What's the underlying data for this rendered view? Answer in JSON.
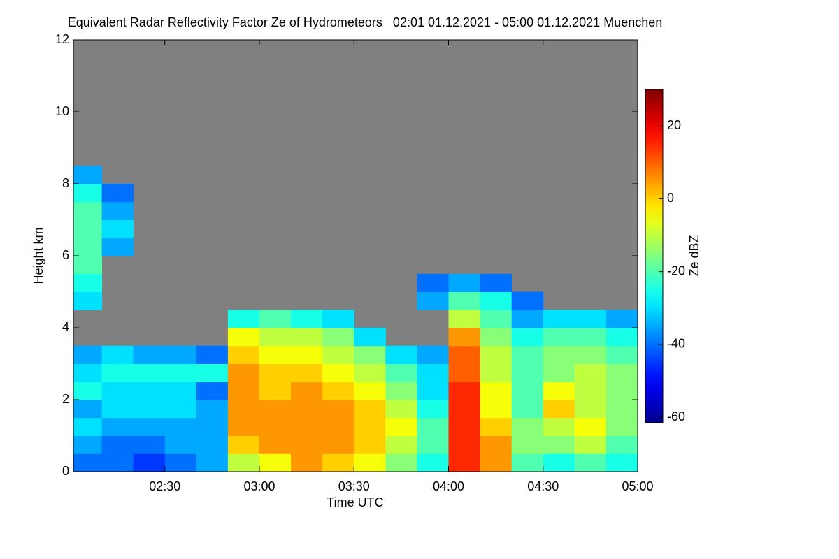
{
  "chart_data": {
    "type": "heatmap",
    "title": "Equivalent Radar Reflectivity Factor Ze of Hydrometeors   02:01 01.12.2021 - 05:00 01.12.2021 Muenchen",
    "xlabel": "Time UTC",
    "ylabel": "Height km",
    "colorbar_label": "Ze dBZ",
    "colormap": "jet",
    "nan_color": "#808080",
    "xlim": [
      121,
      300
    ],
    "ylim": [
      0,
      12
    ],
    "zlim": [
      -61.5,
      30
    ],
    "xticks": [
      {
        "value": 150,
        "label": "02:30"
      },
      {
        "value": 180,
        "label": "03:00"
      },
      {
        "value": 210,
        "label": "03:30"
      },
      {
        "value": 240,
        "label": "04:00"
      },
      {
        "value": 270,
        "label": "04:30"
      },
      {
        "value": 300,
        "label": "05:00"
      }
    ],
    "yticks": [
      0,
      2,
      4,
      6,
      8,
      10,
      12
    ],
    "zticks": [
      -60,
      -40,
      -20,
      0,
      20
    ],
    "xbins": [
      121,
      130,
      140,
      150,
      160,
      170,
      180,
      190,
      200,
      210,
      220,
      230,
      240,
      250,
      260,
      270,
      280,
      290,
      300
    ],
    "ybins": [
      0,
      0.5,
      1,
      1.5,
      2,
      2.5,
      3,
      3.5,
      4,
      4.5,
      5,
      5.5,
      6,
      6.5,
      7,
      7.5,
      8,
      8.5,
      9
    ],
    "z": [
      [
        -40,
        -40,
        -45,
        -40,
        -35,
        -10,
        -5,
        5,
        0,
        -5,
        -15,
        -25,
        15,
        5,
        -20,
        -25,
        -20,
        -25
      ],
      [
        -35,
        -40,
        -40,
        -35,
        -35,
        0,
        5,
        5,
        5,
        0,
        -10,
        -20,
        15,
        5,
        -15,
        -15,
        -10,
        -20
      ],
      [
        -30,
        -35,
        -35,
        -35,
        -35,
        5,
        5,
        5,
        5,
        0,
        -5,
        -20,
        15,
        0,
        -15,
        -10,
        -5,
        -15
      ],
      [
        -35,
        -30,
        -30,
        -30,
        -35,
        5,
        5,
        5,
        5,
        0,
        -10,
        -25,
        15,
        -5,
        -20,
        0,
        -10,
        -15
      ],
      [
        -25,
        -30,
        -30,
        -30,
        -40,
        5,
        0,
        5,
        0,
        -5,
        -15,
        -30,
        15,
        -5,
        -20,
        -5,
        -10,
        -15
      ],
      [
        -30,
        -25,
        -25,
        -25,
        -25,
        5,
        0,
        0,
        -5,
        -10,
        -20,
        -30,
        10,
        -10,
        -20,
        -15,
        -10,
        -15
      ],
      [
        -35,
        -30,
        -35,
        -35,
        -40,
        0,
        -5,
        -5,
        -10,
        -15,
        -30,
        -35,
        10,
        -10,
        -20,
        -15,
        -15,
        -20
      ],
      [
        null,
        null,
        null,
        null,
        null,
        -5,
        -10,
        -10,
        -15,
        -30,
        null,
        null,
        5,
        -15,
        -25,
        -20,
        -20,
        -25
      ],
      [
        null,
        null,
        null,
        null,
        null,
        -25,
        -20,
        -25,
        -30,
        null,
        null,
        null,
        -10,
        -20,
        -35,
        -30,
        -30,
        -35
      ],
      [
        -30,
        null,
        null,
        null,
        null,
        null,
        null,
        null,
        null,
        null,
        null,
        -35,
        -20,
        -25,
        -40,
        null,
        null,
        null
      ],
      [
        -25,
        null,
        null,
        null,
        null,
        null,
        null,
        null,
        null,
        null,
        null,
        -40,
        -35,
        -40,
        null,
        null,
        null,
        null
      ],
      [
        -20,
        null,
        null,
        null,
        null,
        null,
        null,
        null,
        null,
        null,
        null,
        null,
        null,
        null,
        null,
        null,
        null,
        null
      ],
      [
        -20,
        -35,
        null,
        null,
        null,
        null,
        null,
        null,
        null,
        null,
        null,
        null,
        null,
        null,
        null,
        null,
        null,
        null
      ],
      [
        -20,
        -30,
        null,
        null,
        null,
        null,
        null,
        null,
        null,
        null,
        null,
        null,
        null,
        null,
        null,
        null,
        null,
        null
      ],
      [
        -20,
        -35,
        null,
        null,
        null,
        null,
        null,
        null,
        null,
        null,
        null,
        null,
        null,
        null,
        null,
        null,
        null,
        null
      ],
      [
        -25,
        -40,
        null,
        null,
        null,
        null,
        null,
        null,
        null,
        null,
        null,
        null,
        null,
        null,
        null,
        null,
        null,
        null
      ],
      [
        -35,
        null,
        null,
        null,
        null,
        null,
        null,
        null,
        null,
        null,
        null,
        null,
        null,
        null,
        null,
        null,
        null,
        null
      ],
      [
        null,
        null,
        null,
        null,
        null,
        null,
        null,
        null,
        null,
        null,
        null,
        null,
        null,
        null,
        null,
        null,
        null,
        null
      ]
    ]
  }
}
